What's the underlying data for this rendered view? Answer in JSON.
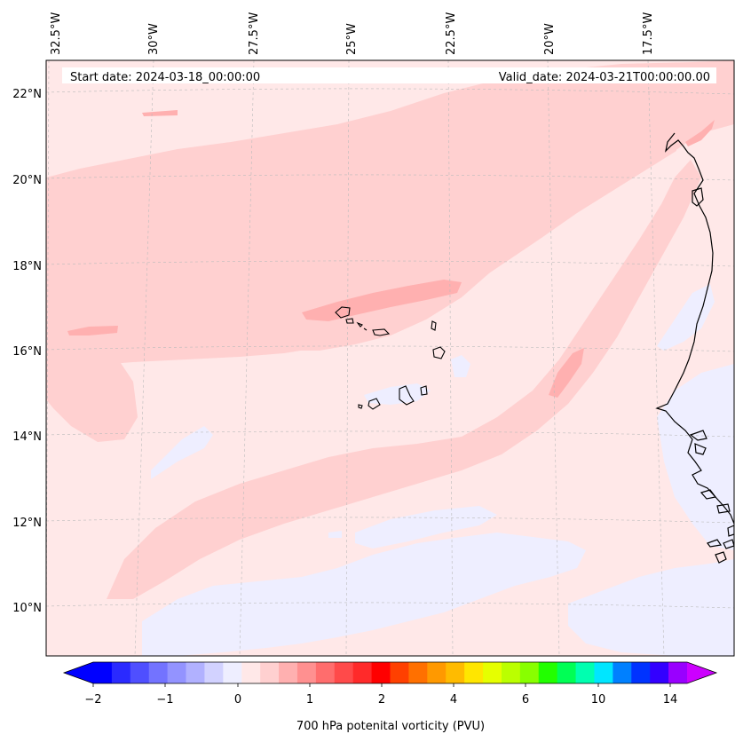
{
  "header": {
    "start_date": "Start date: 2024-03-18_00:00:00",
    "valid_date": "Valid_date: 2024-03-21T00:00:00.00"
  },
  "longitude_labels": [
    "32.5°W",
    "30°W",
    "27.5°W",
    "25°W",
    "22.5°W",
    "20°W",
    "17.5°W"
  ],
  "latitude_labels": [
    "22°N",
    "20°N",
    "18°N",
    "16°N",
    "14°N",
    "12°N",
    "10°N"
  ],
  "colorbar": {
    "label": "700 hPa potenital vorticity (PVU)",
    "tick_labels": [
      "−2",
      "−1",
      "0",
      "1",
      "2",
      "4",
      "6",
      "10",
      "14"
    ],
    "colors": [
      "#0000ff",
      "#2a2aff",
      "#4f4fff",
      "#7373ff",
      "#9393ff",
      "#b1b1ff",
      "#d2d2ff",
      "#eeeeff",
      "#ffe8e8",
      "#ffd0d0",
      "#ffb0b0",
      "#ff9090",
      "#ff6d6d",
      "#ff4a4a",
      "#ff2a2a",
      "#ff0000",
      "#ff4000",
      "#ff7000",
      "#ff9900",
      "#ffbb00",
      "#ffe600",
      "#e6ff00",
      "#bbff00",
      "#88ff00",
      "#22ff00",
      "#00ff55",
      "#00ffb0",
      "#00e6ff",
      "#0080ff",
      "#0033ff",
      "#3300ff",
      "#9900ff"
    ],
    "under_color": "#0000ff",
    "over_color": "#cc00ff"
  },
  "field_colors": {
    "background": "#ffe8e8",
    "light_positive": "#ffd0d0",
    "medium_positive": "#ffb0b0",
    "negative": "#eeeeff",
    "coastline": "#000000"
  }
}
